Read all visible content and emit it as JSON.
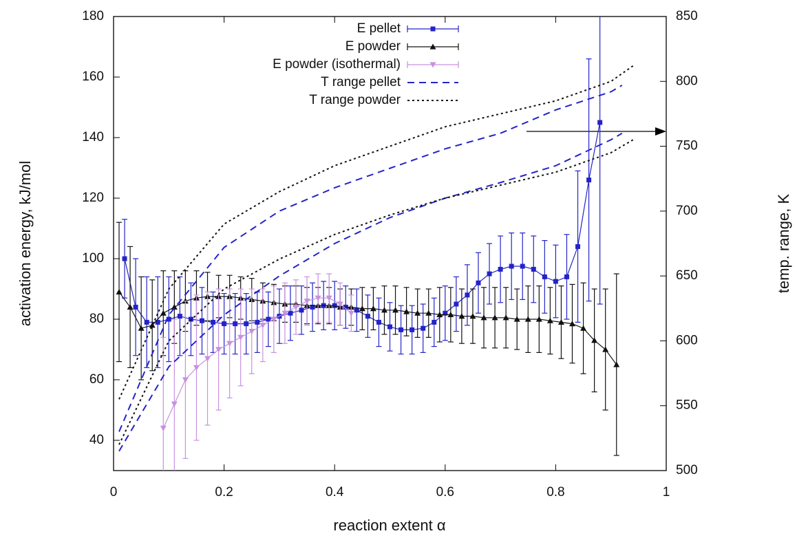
{
  "chart_data": {
    "type": "errorbar-line",
    "x_label": "reaction extent α",
    "y_label": "activation energy, kJ/mol",
    "y2_label": "temp. range, K",
    "xlim": [
      0,
      1
    ],
    "xticks": [
      0,
      0.2,
      0.4,
      0.6,
      0.8,
      1
    ],
    "ylim": [
      30,
      180
    ],
    "yticks": [
      40,
      60,
      80,
      100,
      120,
      140,
      160,
      180
    ],
    "y2lim": [
      500,
      850
    ],
    "y2ticks": [
      500,
      550,
      600,
      650,
      700,
      750,
      800,
      850
    ],
    "legend": "top-center",
    "series": [
      {
        "name": "E pellet",
        "color": "#2323c8",
        "marker": "square",
        "x": [
          0.02,
          0.04,
          0.06,
          0.08,
          0.1,
          0.12,
          0.14,
          0.16,
          0.18,
          0.2,
          0.22,
          0.24,
          0.26,
          0.28,
          0.3,
          0.32,
          0.34,
          0.36,
          0.38,
          0.4,
          0.42,
          0.44,
          0.46,
          0.48,
          0.5,
          0.52,
          0.54,
          0.56,
          0.58,
          0.6,
          0.62,
          0.64,
          0.66,
          0.68,
          0.7,
          0.72,
          0.74,
          0.76,
          0.78,
          0.8,
          0.82,
          0.84,
          0.86,
          0.88
        ],
        "values": [
          100,
          84,
          79,
          79,
          80,
          81,
          80,
          79.5,
          79,
          78.5,
          78.5,
          78.5,
          79,
          80,
          81,
          82,
          83,
          84,
          84.5,
          84.5,
          84,
          83,
          81,
          79,
          77.5,
          76.5,
          76.5,
          77,
          79,
          82,
          85,
          88,
          92,
          95,
          96.5,
          97.5,
          97.5,
          96.5,
          94,
          92.5,
          94,
          104,
          126,
          145
        ],
        "errors": [
          13,
          16,
          15,
          15,
          14,
          13,
          12,
          11,
          10,
          10,
          10,
          10,
          10,
          9,
          9,
          9,
          8,
          8,
          8,
          8,
          7,
          7,
          7,
          8,
          8,
          8,
          8,
          8,
          8,
          9,
          9,
          10,
          10,
          10,
          11,
          11,
          11,
          11,
          12,
          12,
          14,
          25,
          40,
          60
        ]
      },
      {
        "name": "E powder",
        "color": "#111111",
        "marker": "triangle",
        "x": [
          0.01,
          0.03,
          0.05,
          0.07,
          0.09,
          0.11,
          0.13,
          0.15,
          0.17,
          0.19,
          0.21,
          0.23,
          0.25,
          0.27,
          0.29,
          0.31,
          0.33,
          0.35,
          0.37,
          0.39,
          0.41,
          0.43,
          0.45,
          0.47,
          0.49,
          0.51,
          0.53,
          0.55,
          0.57,
          0.59,
          0.61,
          0.63,
          0.65,
          0.67,
          0.69,
          0.71,
          0.73,
          0.75,
          0.77,
          0.79,
          0.81,
          0.83,
          0.85,
          0.87,
          0.89,
          0.91
        ],
        "values": [
          89,
          84,
          77,
          78,
          82,
          84,
          86,
          87,
          87.5,
          87.5,
          87.5,
          87,
          86.5,
          86,
          85.5,
          85,
          85,
          84.5,
          84.5,
          84.5,
          84,
          84,
          83.5,
          83.5,
          83,
          83,
          82.5,
          82,
          82,
          81.5,
          81.5,
          81,
          81,
          80.5,
          80.5,
          80.5,
          80,
          80,
          80,
          79.5,
          79,
          78.5,
          77,
          73,
          70,
          65
        ],
        "errors": [
          23,
          20,
          17,
          15,
          14,
          12,
          10,
          9,
          8,
          7,
          7,
          7,
          7,
          6,
          6,
          6,
          6,
          6,
          6,
          6,
          6,
          6,
          7,
          7,
          8,
          8,
          8,
          8,
          8,
          9,
          9,
          9,
          9,
          10,
          10,
          10,
          10,
          11,
          11,
          11,
          12,
          13,
          15,
          17,
          20,
          30
        ]
      },
      {
        "name": "E powder (isothermal)",
        "color": "#c890e0",
        "marker": "triangle-down",
        "x": [
          0.09,
          0.11,
          0.13,
          0.15,
          0.17,
          0.19,
          0.21,
          0.23,
          0.25,
          0.27,
          0.29,
          0.31,
          0.33,
          0.35,
          0.37,
          0.39,
          0.41,
          0.43
        ],
        "values": [
          44,
          52,
          60,
          64,
          67,
          70,
          72,
          74,
          76,
          78,
          80,
          82,
          84,
          86,
          87,
          87,
          85,
          82
        ],
        "errors": [
          30,
          28,
          26,
          24,
          22,
          20,
          18,
          16,
          14,
          12,
          11,
          10,
          9,
          8,
          8,
          8,
          7,
          6
        ]
      },
      {
        "name": "T range pellet",
        "color": "#2323c8",
        "axis": "y2",
        "dash": "10 7",
        "x": [
          0.01,
          0.1,
          0.2,
          0.3,
          0.4,
          0.5,
          0.6,
          0.7,
          0.8,
          0.9,
          0.92
        ],
        "low": [
          515,
          580,
          620,
          650,
          675,
          695,
          710,
          722,
          735,
          755,
          760
        ],
        "high": [
          530,
          620,
          672,
          700,
          718,
          733,
          748,
          760,
          778,
          792,
          797
        ]
      },
      {
        "name": "T range powder",
        "color": "#111111",
        "axis": "y2",
        "dash": "3 4",
        "x": [
          0.01,
          0.1,
          0.2,
          0.3,
          0.4,
          0.5,
          0.6,
          0.7,
          0.8,
          0.9,
          0.94
        ],
        "low": [
          520,
          600,
          640,
          663,
          682,
          697,
          710,
          720,
          730,
          745,
          755
        ],
        "high": [
          555,
          640,
          690,
          715,
          735,
          750,
          765,
          775,
          785,
          800,
          812
        ]
      }
    ]
  }
}
